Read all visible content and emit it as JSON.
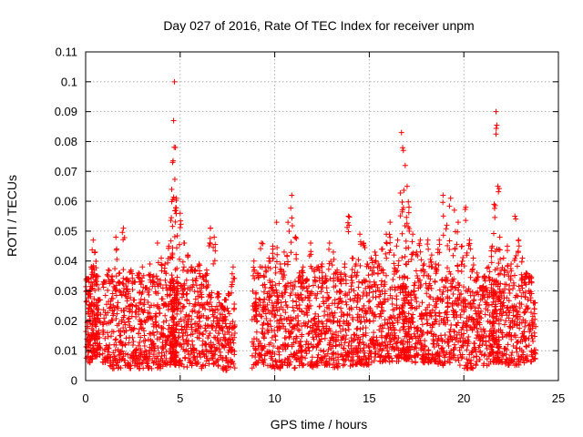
{
  "chart_data": {
    "type": "scatter",
    "title": "Day 027 of 2016, Rate Of TEC Index for receiver unpm",
    "xlabel": "GPS time / hours",
    "ylabel": "ROTI / TECUs",
    "xlim": [
      0,
      25
    ],
    "ylim": [
      0,
      0.11
    ],
    "xticks": [
      0,
      5,
      10,
      15,
      20,
      25
    ],
    "xtick_labels": [
      "0",
      "5",
      "10",
      "15",
      "20",
      "25"
    ],
    "yticks": [
      0,
      0.01,
      0.02,
      0.03,
      0.04,
      0.05,
      0.06,
      0.07,
      0.08,
      0.09,
      0.1,
      0.11
    ],
    "ytick_labels": [
      "0",
      "0.01",
      "0.02",
      "0.03",
      "0.04",
      "0.05",
      "0.06",
      "0.07",
      "0.08",
      "0.09",
      "0.1",
      "0.11"
    ],
    "grid": true,
    "marker": "plus",
    "color": "#ff0000",
    "series": [
      {
        "values_note_x": "hours",
        "x": [
          0.1,
          0.2,
          0.3,
          0.4,
          0.5,
          0.6,
          0.7,
          1.0,
          1.2,
          1.4,
          1.6,
          1.8,
          2.0,
          2.2,
          2.4,
          2.6,
          2.8,
          3.0,
          3.2,
          3.4,
          3.6,
          3.8,
          4.0,
          4.2,
          4.4,
          4.55,
          4.6,
          4.65,
          4.7,
          4.75,
          4.8,
          5.0,
          5.2,
          5.4,
          5.6,
          5.8,
          6.0,
          6.2,
          6.4,
          6.6,
          6.8,
          7.0,
          7.2,
          7.4,
          7.6,
          7.8,
          8.9,
          9.1,
          9.3,
          9.5,
          9.7,
          9.9,
          10.1,
          10.3,
          10.5,
          10.7,
          10.9,
          11.1,
          11.3,
          11.5,
          11.7,
          11.9,
          12.1,
          12.3,
          12.5,
          12.7,
          12.9,
          13.1,
          13.3,
          13.5,
          13.7,
          13.9,
          14.1,
          14.3,
          14.5,
          14.7,
          14.9,
          15.1,
          15.3,
          15.5,
          15.7,
          15.9,
          16.1,
          16.3,
          16.5,
          16.7,
          16.8,
          16.9,
          17.0,
          17.1,
          17.3,
          17.5,
          17.7,
          17.9,
          18.1,
          18.3,
          18.5,
          18.7,
          18.9,
          19.1,
          19.3,
          19.5,
          19.7,
          19.9,
          20.1,
          20.3,
          20.5,
          20.7,
          20.9,
          21.1,
          21.3,
          21.5,
          21.6,
          21.7,
          21.8,
          21.9,
          22.1,
          22.3,
          22.5,
          22.7,
          22.9,
          23.1,
          23.3,
          23.5,
          23.7
        ],
        "y": [
          0.034,
          0.029,
          0.038,
          0.047,
          0.043,
          0.035,
          0.027,
          0.033,
          0.037,
          0.035,
          0.048,
          0.036,
          0.051,
          0.034,
          0.037,
          0.033,
          0.036,
          0.038,
          0.031,
          0.039,
          0.035,
          0.046,
          0.041,
          0.039,
          0.045,
          0.064,
          0.073,
          0.087,
          0.1,
          0.078,
          0.061,
          0.056,
          0.046,
          0.042,
          0.038,
          0.037,
          0.039,
          0.035,
          0.037,
          0.051,
          0.048,
          0.029,
          0.025,
          0.027,
          0.029,
          0.038,
          0.04,
          0.036,
          0.046,
          0.038,
          0.041,
          0.045,
          0.053,
          0.039,
          0.043,
          0.053,
          0.062,
          0.048,
          0.036,
          0.038,
          0.034,
          0.046,
          0.037,
          0.038,
          0.039,
          0.035,
          0.046,
          0.043,
          0.037,
          0.036,
          0.039,
          0.055,
          0.041,
          0.039,
          0.049,
          0.046,
          0.039,
          0.041,
          0.043,
          0.039,
          0.044,
          0.049,
          0.053,
          0.042,
          0.047,
          0.083,
          0.077,
          0.072,
          0.065,
          0.058,
          0.049,
          0.043,
          0.047,
          0.039,
          0.047,
          0.042,
          0.039,
          0.047,
          0.062,
          0.052,
          0.061,
          0.057,
          0.053,
          0.045,
          0.058,
          0.047,
          0.041,
          0.036,
          0.031,
          0.035,
          0.038,
          0.045,
          0.059,
          0.09,
          0.065,
          0.048,
          0.041,
          0.045,
          0.039,
          0.055,
          0.047,
          0.041,
          0.036,
          0.035,
          0.026
        ],
        "y_low": [
          0.007,
          0.006,
          0.006,
          0.007,
          0.007,
          0.008,
          0.008,
          0.006,
          0.005,
          0.004,
          0.005,
          0.004,
          0.005,
          0.005,
          0.004,
          0.005,
          0.004,
          0.004,
          0.005,
          0.004,
          0.004,
          0.004,
          0.004,
          0.005,
          0.005,
          0.006,
          0.006,
          0.006,
          0.006,
          0.006,
          0.005,
          0.005,
          0.004,
          0.004,
          0.005,
          0.005,
          0.005,
          0.004,
          0.005,
          0.005,
          0.005,
          0.004,
          0.003,
          0.003,
          0.004,
          0.004,
          0.004,
          0.005,
          0.005,
          0.005,
          0.005,
          0.004,
          0.004,
          0.004,
          0.005,
          0.005,
          0.005,
          0.004,
          0.005,
          0.005,
          0.005,
          0.004,
          0.004,
          0.005,
          0.005,
          0.005,
          0.005,
          0.004,
          0.004,
          0.005,
          0.005,
          0.004,
          0.005,
          0.005,
          0.005,
          0.005,
          0.005,
          0.006,
          0.006,
          0.006,
          0.006,
          0.006,
          0.006,
          0.006,
          0.006,
          0.007,
          0.007,
          0.007,
          0.007,
          0.007,
          0.006,
          0.006,
          0.006,
          0.006,
          0.006,
          0.006,
          0.006,
          0.005,
          0.005,
          0.006,
          0.006,
          0.006,
          0.005,
          0.005,
          0.004,
          0.003,
          0.004,
          0.005,
          0.005,
          0.005,
          0.005,
          0.005,
          0.006,
          0.006,
          0.006,
          0.006,
          0.006,
          0.005,
          0.005,
          0.005,
          0.005,
          0.005,
          0.006,
          0.006,
          0.007
        ]
      }
    ]
  }
}
